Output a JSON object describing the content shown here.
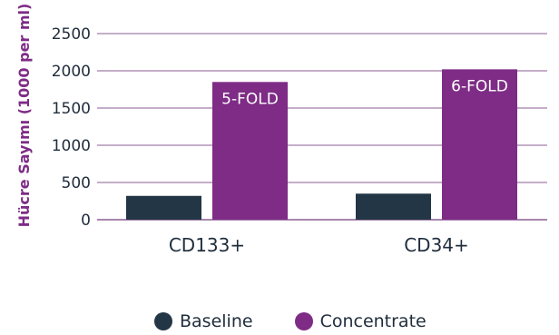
{
  "chart_data": {
    "type": "bar",
    "ylabel": "Hücre Sayımı (1000 per ml)",
    "ylim": [
      0,
      2500
    ],
    "yticks": [
      0,
      500,
      1000,
      1500,
      2000,
      2500
    ],
    "grid": true,
    "legend_position": "bottom",
    "categories": [
      "CD133+",
      "CD34+"
    ],
    "series": [
      {
        "name": "Baseline",
        "color": "#233646",
        "values": [
          320,
          350
        ]
      },
      {
        "name": "Concentrate",
        "color": "#7e2c86",
        "values": [
          1850,
          2020
        ]
      }
    ],
    "annotations": [
      "5-FOLD",
      "6-FOLD"
    ],
    "ylabel_color": "#7e2c86",
    "grid_color": "#8b5e93"
  }
}
